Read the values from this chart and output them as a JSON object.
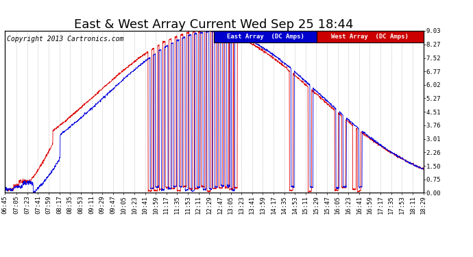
{
  "title": "East & West Array Current Wed Sep 25 18:44",
  "copyright": "Copyright 2013 Cartronics.com",
  "ylabel_right": [
    "9.03",
    "8.27",
    "7.52",
    "6.77",
    "6.02",
    "5.27",
    "4.51",
    "3.76",
    "3.01",
    "2.26",
    "1.50",
    "0.75",
    "0.00"
  ],
  "yticks": [
    9.03,
    8.27,
    7.52,
    6.77,
    6.02,
    5.27,
    4.51,
    3.76,
    3.01,
    2.26,
    1.5,
    0.75,
    0.0
  ],
  "ylim": [
    0.0,
    9.03
  ],
  "x_labels": [
    "06:45",
    "07:05",
    "07:23",
    "07:41",
    "07:59",
    "08:17",
    "08:35",
    "08:53",
    "09:11",
    "09:29",
    "09:47",
    "10:05",
    "10:23",
    "10:41",
    "10:59",
    "11:17",
    "11:35",
    "11:53",
    "12:11",
    "12:29",
    "12:47",
    "13:05",
    "13:23",
    "13:41",
    "13:59",
    "14:17",
    "14:35",
    "14:53",
    "15:11",
    "15:29",
    "15:47",
    "16:05",
    "16:23",
    "16:41",
    "16:59",
    "17:17",
    "17:35",
    "17:53",
    "18:11",
    "18:29"
  ],
  "east_color": "#0000dd",
  "west_color": "#dd0000",
  "legend_east_bg": "#0000cc",
  "legend_west_bg": "#cc0000",
  "legend_text_east": "East Array  (DC Amps)",
  "legend_text_west": "West Array  (DC Amps)",
  "bg_color": "#ffffff",
  "grid_color": "#bbbbbb",
  "title_fontsize": 13,
  "copyright_fontsize": 7,
  "tick_fontsize": 6.5,
  "legend_fontsize": 6.5
}
